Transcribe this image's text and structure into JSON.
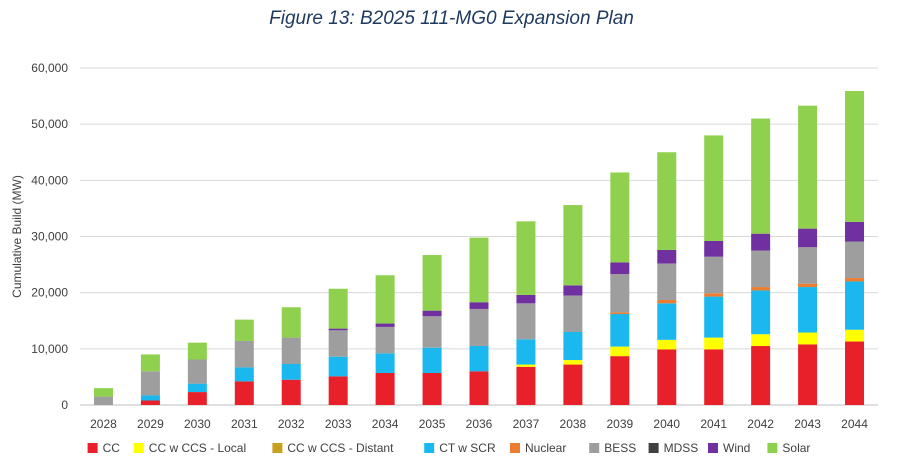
{
  "chart_data": {
    "type": "bar",
    "stacked": true,
    "title": "Figure 13: B2025 111-MG0 Expansion Plan",
    "xlabel": "",
    "ylabel": "Cumulative Build (MW)",
    "ylim": [
      0,
      60000
    ],
    "yticks": [
      "0",
      "10,000",
      "20,000",
      "30,000",
      "40,000",
      "50,000",
      "60,000"
    ],
    "grid": true,
    "legend_position": "bottom",
    "categories": [
      "2028",
      "2029",
      "2030",
      "2031",
      "2032",
      "2033",
      "2034",
      "2035",
      "2036",
      "2037",
      "2038",
      "2039",
      "2040",
      "2041",
      "2042",
      "2043",
      "2044"
    ],
    "series": [
      {
        "name": "CC",
        "color": "#e8202a",
        "values": [
          0,
          800,
          2300,
          4200,
          4500,
          5100,
          5700,
          5700,
          6000,
          6800,
          7200,
          8700,
          9900,
          9900,
          10500,
          10800,
          11300
        ]
      },
      {
        "name": "CC w CCS - Local",
        "color": "#ffff00",
        "values": [
          0,
          0,
          0,
          0,
          0,
          0,
          0,
          0,
          0,
          400,
          800,
          1700,
          1700,
          2100,
          2100,
          2100,
          2100
        ]
      },
      {
        "name": "CC w CCS - Distant",
        "color": "#c8a020",
        "values": [
          0,
          0,
          0,
          0,
          0,
          0,
          0,
          0,
          0,
          0,
          0,
          0,
          0,
          0,
          0,
          0,
          0
        ]
      },
      {
        "name": "CT w SCR",
        "color": "#1ab8ef",
        "values": [
          0,
          900,
          1500,
          2500,
          2800,
          3500,
          3500,
          4500,
          4500,
          4500,
          5000,
          5800,
          6500,
          7300,
          7800,
          8100,
          8600
        ]
      },
      {
        "name": "Nuclear",
        "color": "#ed7d31",
        "values": [
          0,
          0,
          0,
          0,
          0,
          0,
          0,
          0,
          0,
          0,
          0,
          300,
          600,
          600,
          600,
          600,
          600
        ]
      },
      {
        "name": "BESS",
        "color": "#9e9e9e",
        "values": [
          1500,
          4300,
          4300,
          4700,
          4700,
          4700,
          4700,
          5600,
          6600,
          6400,
          6500,
          6800,
          6500,
          6500,
          6500,
          6500,
          6500
        ]
      },
      {
        "name": "MDSS",
        "color": "#404040",
        "values": [
          0,
          0,
          0,
          0,
          0,
          0,
          0,
          0,
          0,
          0,
          0,
          0,
          0,
          0,
          0,
          0,
          0
        ]
      },
      {
        "name": "Wind",
        "color": "#7030a0",
        "values": [
          0,
          0,
          0,
          0,
          0,
          300,
          600,
          1000,
          1200,
          1500,
          1800,
          2100,
          2400,
          2800,
          3000,
          3300,
          3500
        ]
      },
      {
        "name": "Solar",
        "color": "#8fd14f",
        "values": [
          1500,
          3000,
          3000,
          3800,
          5400,
          7100,
          8600,
          9900,
          11500,
          13100,
          14300,
          16000,
          17400,
          18800,
          20500,
          21900,
          23300
        ]
      }
    ]
  }
}
